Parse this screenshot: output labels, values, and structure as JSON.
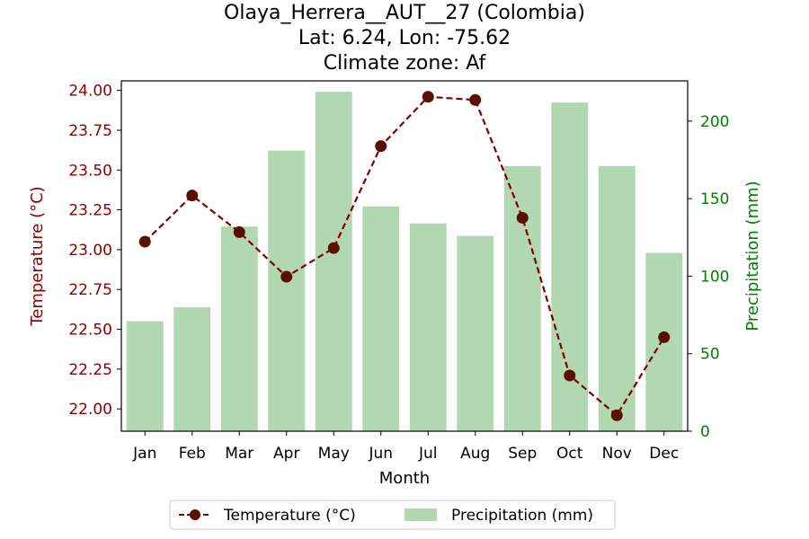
{
  "chart_data": {
    "type": "bar+line",
    "title_lines": [
      "Olaya_Herrera__AUT__27 (Colombia)",
      "Lat: 6.24, Lon: -75.62",
      "Climate zone: Af"
    ],
    "xlabel": "Month",
    "ylabel_left": "Temperature (°C)",
    "ylabel_right": "Precipitation (mm)",
    "categories": [
      "Jan",
      "Feb",
      "Mar",
      "Apr",
      "May",
      "Jun",
      "Jul",
      "Aug",
      "Sep",
      "Oct",
      "Nov",
      "Dec"
    ],
    "temperature": {
      "name": "Temperature (°C)",
      "values": [
        23.05,
        23.34,
        23.11,
        22.83,
        23.01,
        23.65,
        23.96,
        23.94,
        23.2,
        22.21,
        21.96,
        22.45
      ],
      "color": "#800000",
      "marker_color": "#5a0f00",
      "ylim": [
        21.86,
        24.06
      ],
      "ticks": [
        "22.00",
        "22.25",
        "22.50",
        "22.75",
        "23.00",
        "23.25",
        "23.50",
        "23.75",
        "24.00"
      ]
    },
    "precipitation": {
      "name": "Precipitation (mm)",
      "values": [
        71,
        80,
        132,
        181,
        219,
        145,
        134,
        126,
        171,
        212,
        171,
        115
      ],
      "color": "#b2d8b2",
      "ylim": [
        0,
        226
      ],
      "ticks": [
        "0",
        "50",
        "100",
        "150",
        "200"
      ]
    },
    "left_axis_color": "#8b0000",
    "right_axis_color": "#008000",
    "legend_position": "bottom-center",
    "grid": false
  }
}
